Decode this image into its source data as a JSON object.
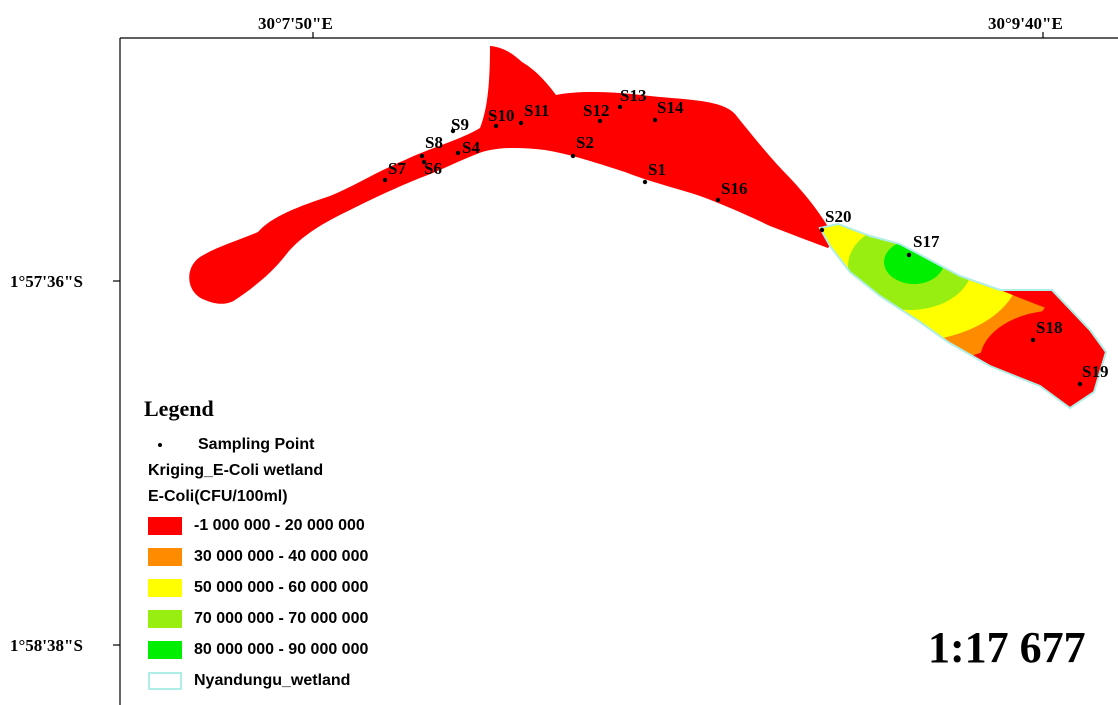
{
  "graticule": {
    "lon_labels": [
      "30°7'50\"E",
      "30°9'40\"E"
    ],
    "lat_labels": [
      "1°57'36\"S",
      "1°58'38\"S"
    ]
  },
  "sampling_points": [
    "S1",
    "S2",
    "S4",
    "S6",
    "S7",
    "S8",
    "S9",
    "S10",
    "S11",
    "S12",
    "S13",
    "S14",
    "S16",
    "S17",
    "S18",
    "S19",
    "S20"
  ],
  "legend": {
    "title": "Legend",
    "point_label": "Sampling Point",
    "layer_name": "Kriging_E-Coli wetland",
    "field_name": "E-Coli(CFU/100ml)",
    "classes": [
      {
        "label": "-1 000 000 - 20 000 000",
        "color": "#ff0000"
      },
      {
        "label": "30 000 000 - 40 000 000",
        "color": "#ff8c00"
      },
      {
        "label": "50 000 000 - 60 000 000",
        "color": "#ffff00"
      },
      {
        "label": "70 000 000 - 70 000 000",
        "color": "#99ee11"
      },
      {
        "label": "80 000 000 - 90 000 000",
        "color": "#00ee00"
      }
    ],
    "boundary": {
      "label": "Nyandungu_wetland",
      "color": "#aeeee6"
    }
  },
  "scale": "1:17 677"
}
